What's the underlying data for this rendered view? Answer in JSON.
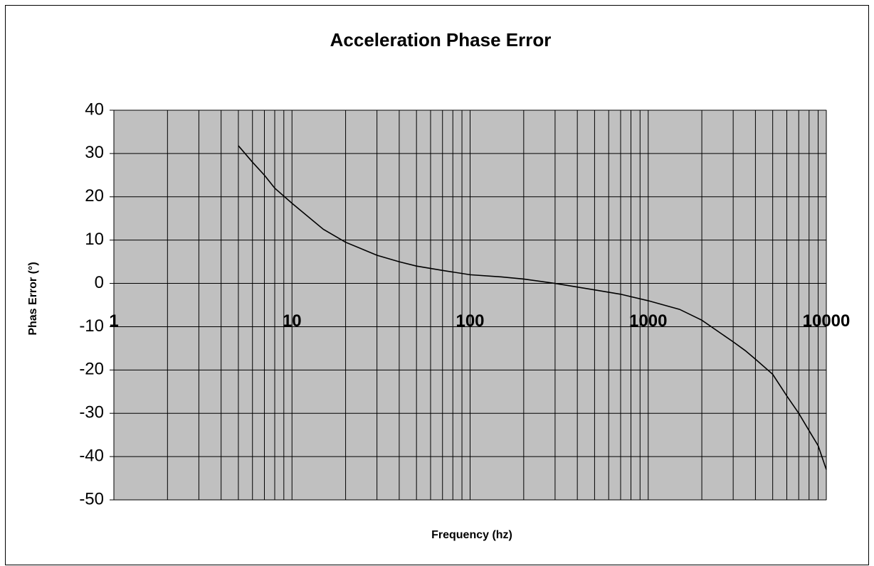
{
  "chart_data": {
    "type": "line",
    "title": "Acceleration Phase Error",
    "x_label": "Frequency (hz)",
    "y_label": "Phas Error (°)",
    "x": [
      5,
      6,
      7,
      8,
      10,
      15,
      20,
      30,
      40,
      50,
      70,
      100,
      150,
      200,
      300,
      500,
      700,
      1000,
      1500,
      2000,
      3000,
      3500,
      4000,
      5000,
      6000,
      7000,
      8000,
      9000,
      10000
    ],
    "series": [
      {
        "name": "Phase Error",
        "color": "#000000",
        "values": [
          31.8,
          28,
          25,
          22,
          18.5,
          12.5,
          9.5,
          6.5,
          5,
          4,
          3,
          2,
          1.5,
          1,
          0,
          -1.5,
          -2.5,
          -4,
          -6,
          -8.5,
          -13.5,
          -15.5,
          -17.5,
          -21,
          -26,
          -30,
          -34,
          -37.5,
          -43
        ]
      }
    ],
    "xlim": [
      1,
      10000
    ],
    "xticks": [
      1,
      10,
      100,
      1000,
      10000
    ],
    "xlog": true,
    "ylim": [
      -50,
      40
    ],
    "yticks": [
      -50,
      -40,
      -30,
      -20,
      -10,
      0,
      10,
      20,
      30,
      40
    ],
    "grid": true,
    "minor_grid": true,
    "plot_background": "#c0c0c0"
  }
}
